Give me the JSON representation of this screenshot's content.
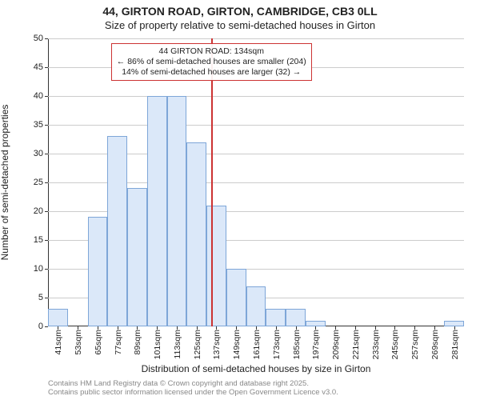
{
  "title_main": "44, GIRTON ROAD, GIRTON, CAMBRIDGE, CB3 0LL",
  "title_sub": "Size of property relative to semi-detached houses in Girton",
  "ylabel": "Number of semi-detached properties",
  "xlabel": "Distribution of semi-detached houses by size in Girton",
  "credits_1": "Contains HM Land Registry data © Crown copyright and database right 2025.",
  "credits_2": "Contains public sector information licensed under the Open Government Licence v3.0.",
  "chart": {
    "type": "histogram",
    "background_color": "#ffffff",
    "grid_color": "#cccccc",
    "axis_color": "#333333",
    "bar_fill": "#dbe8f9",
    "bar_border": "#7ea6d8",
    "ref_line_color": "#cc3333",
    "ref_value": 134,
    "ylim": [
      0,
      50
    ],
    "ytick_step": 5,
    "xstart": 35,
    "xbin_width": 12,
    "x_ticks": [
      41,
      53,
      65,
      77,
      89,
      101,
      113,
      125,
      137,
      149,
      161,
      173,
      185,
      197,
      209,
      221,
      233,
      245,
      257,
      269,
      281
    ],
    "values": [
      3,
      0,
      19,
      33,
      24,
      40,
      40,
      32,
      21,
      10,
      7,
      3,
      3,
      1,
      0,
      0,
      0,
      0,
      0,
      0,
      1
    ],
    "title_fontsize": 14,
    "label_fontsize": 12,
    "tick_fontsize": 11
  },
  "annotation": {
    "line1": "44 GIRTON ROAD: 134sqm",
    "line2": "← 86% of semi-detached houses are smaller (204)",
    "line3": "14% of semi-detached houses are larger (32) →"
  },
  "x_unit_suffix": "sqm"
}
